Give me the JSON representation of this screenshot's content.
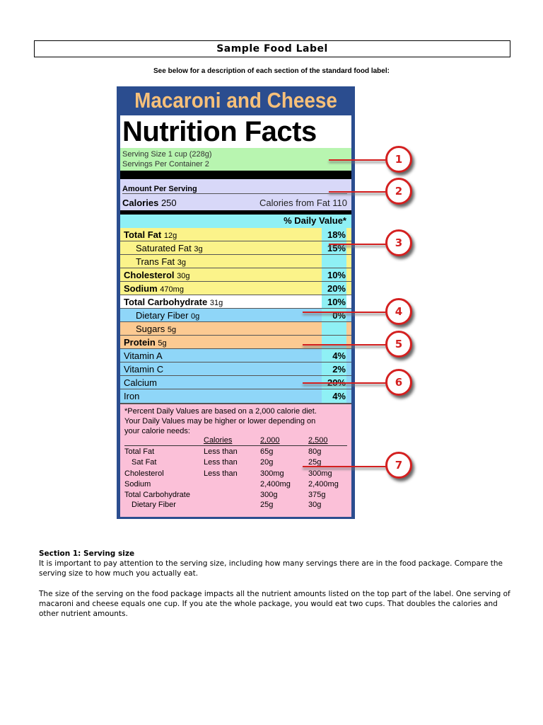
{
  "header": {
    "title": "Sample Food Label",
    "subtitle": "See below for a description of each section of the standard food label:"
  },
  "label": {
    "product": "Macaroni and Cheese",
    "heading": "Nutrition Facts",
    "serving_size": "Serving Size 1 cup (228g)",
    "servings_per_container": "Servings Per Container 2",
    "amount_per_serving": "Amount Per Serving",
    "calories_label": "Calories",
    "calories_value": "250",
    "calories_from_fat": "Calories from Fat 110",
    "dv_header": "% Daily Value*",
    "nutrients": [
      {
        "name": "Total Fat",
        "amount": "12g",
        "dv": "18%"
      },
      {
        "name": "Saturated Fat",
        "amount": "3g",
        "dv": "15%"
      },
      {
        "name": "Trans Fat",
        "amount": "3g",
        "dv": ""
      },
      {
        "name": "Cholesterol",
        "amount": "30g",
        "dv": "10%"
      },
      {
        "name": "Sodium",
        "amount": "470mg",
        "dv": "20%"
      },
      {
        "name": "Total Carbohydrate",
        "amount": "31g",
        "dv": "10%"
      },
      {
        "name": "Dietary Fiber",
        "amount": "0g",
        "dv": "0%"
      },
      {
        "name": "Sugars",
        "amount": "5g",
        "dv": ""
      },
      {
        "name": "Protein",
        "amount": "5g",
        "dv": ""
      },
      {
        "name": "Vitamin A",
        "amount": "",
        "dv": "4%"
      },
      {
        "name": "Vitamin C",
        "amount": "",
        "dv": "2%"
      },
      {
        "name": "Calcium",
        "amount": "",
        "dv": "20%"
      },
      {
        "name": "Iron",
        "amount": "",
        "dv": "4%"
      }
    ],
    "footnote": [
      "*Percent Daily Values are based on a 2,000 calorie diet.",
      "Your Daily Values may be higher or lower depending on",
      "your calorie needs:"
    ],
    "footnote_table": {
      "header": [
        "",
        "Calories",
        "2,000",
        "2,500"
      ],
      "rows": [
        [
          "Total Fat",
          "Less than",
          "65g",
          "80g"
        ],
        [
          "Sat Fat",
          "Less than",
          "20g",
          "25g"
        ],
        [
          "Cholesterol",
          "Less than",
          "300mg",
          "300mg"
        ],
        [
          "Sodium",
          "",
          "2,400mg",
          "2,400mg"
        ],
        [
          "Total Carbohydrate",
          "",
          "300g",
          "375g"
        ],
        [
          "Dietary Fiber",
          "",
          "25g",
          "30g"
        ]
      ]
    }
  },
  "callouts": [
    "1",
    "2",
    "3",
    "4",
    "5",
    "6",
    "7"
  ],
  "section": {
    "heading": "Section 1: Serving size",
    "p1": "It is important to pay attention to the serving size, including how many servings there are in the food package. Compare the serving size to how much you actually eat.",
    "p2": "The size of the serving on the food package impacts all the nutrient amounts listed on the top part of the label. One serving of macaroni and cheese equals one cup. If you ate the whole package, you would eat two cups. That doubles the calories and other nutrient amounts."
  },
  "colors": {
    "frame": "#2b4d8f",
    "serving": "#b8f5b0",
    "calories": "#d8d8f8",
    "dv_header": "#8ff0f5",
    "fat_sodium": "#fbf38a",
    "fiber_vitamins": "#8fd6f8",
    "sugar_protein": "#fcca92",
    "footnote": "#fbc0d8",
    "callout": "#d42020"
  }
}
